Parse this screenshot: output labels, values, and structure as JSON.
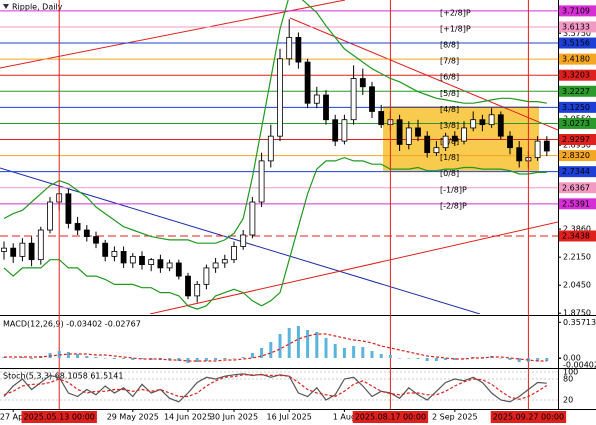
{
  "chart_data": {
    "type": "candlestick",
    "title": "Ripple, Daily",
    "categories": [
      null,
      "27 Apr",
      null,
      null,
      null,
      null,
      "2025.05.13 00:00",
      null,
      null,
      null,
      null,
      null,
      null,
      null,
      "29 May 2025",
      null,
      null,
      null,
      null,
      null,
      "14 Jun 2025",
      null,
      null,
      null,
      null,
      "30 Jun 2025",
      null,
      null,
      null,
      null,
      null,
      "16 Jul 2025",
      null,
      null,
      null,
      null,
      null,
      "1 Aug",
      null,
      null,
      null,
      null,
      "2025.08.17 00:00",
      null,
      null,
      null,
      null,
      null,
      null,
      "2 Sep 2025",
      null,
      null,
      null,
      null,
      null,
      null,
      null,
      "2025.09.27 00:00",
      null,
      null
    ],
    "open": [
      2.25,
      2.27,
      2.22,
      2.3,
      2.2,
      2.38,
      2.55,
      2.6,
      2.42,
      2.38,
      2.34,
      2.3,
      2.22,
      2.25,
      2.18,
      2.22,
      2.17,
      2.2,
      2.15,
      2.18,
      2.1,
      1.98,
      2.05,
      2.15,
      2.18,
      2.2,
      2.28,
      2.35,
      2.55,
      2.8,
      2.95,
      3.42,
      3.55,
      3.4,
      3.15,
      3.2,
      3.05,
      2.92,
      3.05,
      3.3,
      3.25,
      3.1,
      3.02,
      3.05,
      2.9,
      3.0,
      2.95,
      2.85,
      2.88,
      2.95,
      2.92,
      3.0,
      3.05,
      3.02,
      3.08,
      2.95,
      2.88,
      2.8,
      2.82,
      2.92
    ],
    "high": [
      2.31,
      2.3,
      2.33,
      2.34,
      2.4,
      2.58,
      2.65,
      2.63,
      2.46,
      2.41,
      2.37,
      2.32,
      2.28,
      2.28,
      2.24,
      2.25,
      2.21,
      2.23,
      2.2,
      2.2,
      2.12,
      2.07,
      2.17,
      2.21,
      2.23,
      2.31,
      2.38,
      2.58,
      2.85,
      3.02,
      3.48,
      3.66,
      3.58,
      3.42,
      3.25,
      3.23,
      3.08,
      3.08,
      3.38,
      3.36,
      3.28,
      3.14,
      3.1,
      3.08,
      3.04,
      3.05,
      2.98,
      2.92,
      2.97,
      2.98,
      3.04,
      3.1,
      3.08,
      3.12,
      3.1,
      2.98,
      2.92,
      2.86,
      2.95,
      2.95
    ],
    "low": [
      2.2,
      2.18,
      2.19,
      2.16,
      2.17,
      2.36,
      2.5,
      2.39,
      2.35,
      2.31,
      2.27,
      2.19,
      2.19,
      2.15,
      2.15,
      2.14,
      2.13,
      2.12,
      2.13,
      2.08,
      1.96,
      1.94,
      2.02,
      2.12,
      2.15,
      2.18,
      2.26,
      2.33,
      2.52,
      2.76,
      2.92,
      3.38,
      3.36,
      3.12,
      3.12,
      3.02,
      2.89,
      2.9,
      3.02,
      3.2,
      3.06,
      3.0,
      2.98,
      2.86,
      2.87,
      2.92,
      2.82,
      2.83,
      2.86,
      2.89,
      2.9,
      2.98,
      2.98,
      3.0,
      2.93,
      2.84,
      2.76,
      2.76,
      2.8,
      2.83
    ],
    "close": [
      2.27,
      2.22,
      2.3,
      2.2,
      2.38,
      2.55,
      2.6,
      2.42,
      2.38,
      2.34,
      2.3,
      2.22,
      2.25,
      2.18,
      2.22,
      2.17,
      2.2,
      2.15,
      2.18,
      2.1,
      1.98,
      2.05,
      2.15,
      2.18,
      2.2,
      2.28,
      2.35,
      2.55,
      2.8,
      2.95,
      3.42,
      3.55,
      3.4,
      3.15,
      3.2,
      3.05,
      2.92,
      3.05,
      3.3,
      3.25,
      3.1,
      3.02,
      3.05,
      2.9,
      3.0,
      2.95,
      2.85,
      2.88,
      2.95,
      2.92,
      3.0,
      3.05,
      3.02,
      3.08,
      2.95,
      2.88,
      2.8,
      2.82,
      2.92,
      2.86
    ],
    "up_color": "#ffffff",
    "down_color": "#000000",
    "ylim": [
      1.87,
      3.777
    ],
    "yticks": [
      {
        "value": 3.575,
        "label": "3.5750"
      },
      {
        "value": 3.055,
        "label": "3.0550"
      },
      {
        "value": 2.895,
        "label": "2.8950"
      },
      {
        "value": 2.386,
        "label": "2.3860"
      },
      {
        "value": 2.215,
        "label": "2.2150"
      },
      {
        "value": 2.045,
        "label": "2.0450"
      },
      {
        "value": 1.875,
        "label": "1.8750"
      }
    ],
    "levels": [
      {
        "name": "[+2/8]P",
        "value": 3.7109,
        "color": "#d62fd6"
      },
      {
        "name": "[+1/8]P",
        "value": 3.6133,
        "color": "#f29ac4"
      },
      {
        "name": "[8/8]",
        "value": 3.5156,
        "color": "#1c3fd8"
      },
      {
        "name": "[7/8]",
        "value": 3.418,
        "value_label": "3.4180",
        "color": "#f5a623"
      },
      {
        "name": "[6/8]",
        "value": 3.3203,
        "color": "#e0201c"
      },
      {
        "name": "[5/8]",
        "value": 3.2227,
        "color": "#2a9a2a"
      },
      {
        "name": "[4/8]",
        "value": 3.125,
        "value_label": "3.1250",
        "color": "#1c3fd8"
      },
      {
        "name": "[3/8]",
        "value": 3.0273,
        "color": "#2a9a2a"
      },
      {
        "name": "[2/8]",
        "value": 2.9297,
        "color": "#e0201c"
      },
      {
        "name": "[1/8]",
        "value": 2.832,
        "value_label": "2.8320",
        "color": "#f5a623"
      },
      {
        "name": "[0/8]",
        "value": 2.7344,
        "color": "#1c3fd8"
      },
      {
        "name": "[-1/8]P",
        "value": 2.6367,
        "color": "#f29ac4"
      },
      {
        "name": "[-2/8]P",
        "value": 2.5391,
        "color": "#d62fd6"
      },
      {
        "value": 2.3438,
        "color": "#e0201c",
        "style": "dashed"
      }
    ],
    "bands": [
      {
        "color": "#1f9a1f",
        "values": [
          2.45,
          2.48,
          2.5,
          2.55,
          2.6,
          2.65,
          2.68,
          2.66,
          2.62,
          2.58,
          2.52,
          2.48,
          2.44,
          2.4,
          2.38,
          2.36,
          2.34,
          2.33,
          2.32,
          2.32,
          2.32,
          2.3,
          2.3,
          2.3,
          2.32,
          2.36,
          2.45,
          2.7,
          3.0,
          3.3,
          3.6,
          3.8,
          3.8,
          3.75,
          3.7,
          3.62,
          3.55,
          3.48,
          3.44,
          3.4,
          3.36,
          3.33,
          3.3,
          3.28,
          3.25,
          3.22,
          3.2,
          3.18,
          3.17,
          3.16,
          3.15,
          3.15,
          3.16,
          3.17,
          3.18,
          3.18,
          3.17,
          3.16,
          3.16,
          3.15
        ]
      },
      {
        "color": "#1f9a1f",
        "values": [
          2.15,
          2.1,
          2.15,
          2.15,
          2.15,
          2.2,
          2.2,
          2.15,
          2.15,
          2.1,
          2.1,
          2.08,
          2.05,
          2.05,
          2.05,
          2.03,
          2.03,
          2.0,
          2.0,
          1.98,
          1.92,
          1.9,
          1.92,
          1.98,
          2.0,
          2.02,
          2.0,
          1.95,
          1.92,
          1.95,
          2.0,
          2.2,
          2.4,
          2.6,
          2.75,
          2.8,
          2.8,
          2.82,
          2.8,
          2.8,
          2.78,
          2.78,
          2.75,
          2.75,
          2.75,
          2.76,
          2.74,
          2.74,
          2.75,
          2.75,
          2.76,
          2.76,
          2.75,
          2.75,
          2.75,
          2.74,
          2.72,
          2.72,
          2.73,
          2.73
        ]
      }
    ],
    "macd": {
      "title": "MACD(12,26,9) -0.03402 -0.02767",
      "histogram_color": "#5ab4dc",
      "signal_color": "#e0201c",
      "histogram": [
        0.01,
        0.0,
        0.01,
        -0.01,
        0.02,
        0.05,
        0.07,
        0.06,
        0.04,
        0.02,
        0.01,
        0,
        -0.01,
        -0.01,
        -0.02,
        -0.01,
        -0.02,
        -0.02,
        -0.02,
        -0.03,
        -0.05,
        -0.04,
        -0.03,
        -0.02,
        -0.01,
        0,
        0.01,
        0.05,
        0.1,
        0.16,
        0.24,
        0.3,
        0.32,
        0.28,
        0.26,
        0.2,
        0.14,
        0.1,
        0.12,
        0.11,
        0.07,
        0.04,
        0.03,
        0,
        0,
        -0.01,
        -0.03,
        -0.03,
        -0.02,
        -0.02,
        0,
        0.01,
        0.01,
        0.02,
        0,
        -0.02,
        -0.04,
        -0.04,
        -0.03,
        -0.03
      ],
      "signal": [
        0.01,
        0.01,
        0.01,
        0.01,
        0.01,
        0.02,
        0.03,
        0.04,
        0.04,
        0.04,
        0.03,
        0.03,
        0.02,
        0.01,
        0.0,
        -0.01,
        -0.01,
        -0.01,
        -0.02,
        -0.02,
        -0.03,
        -0.03,
        -0.03,
        -0.03,
        -0.02,
        -0.02,
        -0.01,
        0.0,
        0.02,
        0.05,
        0.09,
        0.14,
        0.19,
        0.22,
        0.24,
        0.24,
        0.22,
        0.2,
        0.18,
        0.17,
        0.15,
        0.12,
        0.1,
        0.08,
        0.06,
        0.04,
        0.02,
        0.01,
        0.0,
        -0.01,
        -0.01,
        0,
        0,
        0.01,
        0.01,
        0,
        -0.01,
        -0.02,
        -0.03,
        -0.03
      ],
      "ylim": [
        -0.1,
        0.4
      ],
      "yticks": [
        0.35713,
        {
          "value": 0,
          "label": "0.00"
        },
        {
          "value": -0.00402,
          "label": "-0.00402"
        }
      ]
    },
    "stochastic": {
      "title": "Stoch(5,3,3) 68.1058 61.5141",
      "k_color": "#555555",
      "d_color": "#e0201c",
      "k": [
        30,
        60,
        80,
        50,
        70,
        90,
        85,
        40,
        30,
        50,
        35,
        60,
        40,
        55,
        30,
        65,
        40,
        50,
        25,
        15,
        40,
        70,
        85,
        80,
        88,
        92,
        95,
        90,
        93,
        85,
        92,
        88,
        40,
        30,
        55,
        20,
        35,
        80,
        85,
        60,
        30,
        45,
        40,
        25,
        55,
        35,
        20,
        45,
        70,
        80,
        75,
        85,
        70,
        40,
        20,
        15,
        30,
        50,
        70,
        68.1058
      ],
      "d": [
        35,
        45,
        60,
        65,
        65,
        70,
        80,
        70,
        50,
        40,
        45,
        45,
        50,
        50,
        45,
        50,
        45,
        50,
        40,
        30,
        30,
        40,
        60,
        75,
        85,
        87,
        92,
        92,
        92,
        90,
        90,
        88,
        70,
        50,
        40,
        35,
        30,
        45,
        65,
        75,
        60,
        45,
        38,
        35,
        40,
        40,
        35,
        35,
        45,
        60,
        72,
        80,
        78,
        65,
        45,
        28,
        22,
        30,
        45,
        61.5141
      ],
      "ylim": [
        0,
        100
      ],
      "yticks": [
        100,
        80,
        20
      ]
    }
  }
}
